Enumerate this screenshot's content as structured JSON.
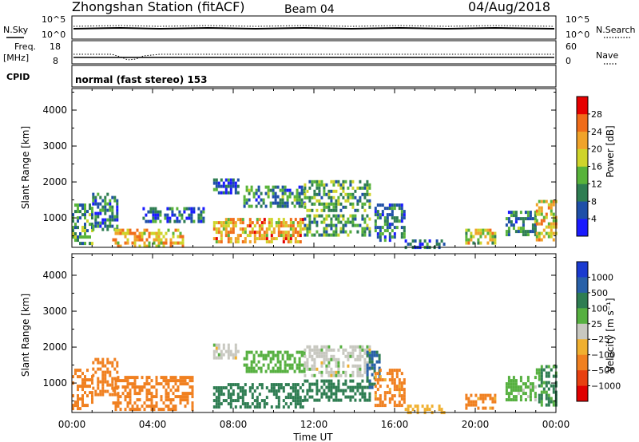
{
  "header": {
    "station_title": "Zhongshan Station (fitACF)",
    "beam_label": "Beam 04",
    "date": "04/Aug/2018"
  },
  "noise_panel": {
    "left_label": "N.Sky",
    "right_label": "N.Search",
    "left_ticks": [
      "10^5",
      "10^0"
    ],
    "right_ticks": [
      "10^5",
      "10^0"
    ]
  },
  "freq_panel": {
    "left_label_line1": "Freq.",
    "left_label_line2": "[MHz]",
    "right_label": "Nave",
    "left_ticks": [
      "18",
      "8"
    ],
    "right_ticks": [
      "60",
      "0"
    ]
  },
  "cpid_panel": {
    "label": "CPID",
    "mode_text": "normal (fast stereo) 153"
  },
  "colors": {
    "power_scale": [
      "#1a1aff",
      "#1e4fa8",
      "#2e7d52",
      "#58b33a",
      "#cfd42a",
      "#f0a32a",
      "#f06c1a",
      "#e60000"
    ],
    "velocity_scale": [
      "#1a3ad0",
      "#2860a8",
      "#2e7d52",
      "#56b040",
      "#c8c8c0",
      "#f0b030",
      "#f08020",
      "#e84010",
      "#e00000"
    ]
  },
  "chart_data": [
    {
      "type": "heatmap",
      "title": "Power",
      "xlabel": "",
      "ylabel": "Slant Range [km]",
      "x_unit": "UT hours",
      "xlim": [
        0,
        24
      ],
      "ylim": [
        180,
        4600
      ],
      "x_tick_values": [
        0,
        4,
        8,
        12,
        16,
        20,
        24
      ],
      "y_tick_values": [
        1000,
        2000,
        3000,
        4000
      ],
      "y_tick_labels": [
        "1000",
        "2000",
        "3000",
        "4000"
      ],
      "colorbar": {
        "label": "Power [dB]",
        "tick_labels": [
          "4",
          "8",
          "12",
          "16",
          "20",
          "24",
          "28"
        ]
      },
      "regions": [
        {
          "t_start": 0.0,
          "t_end": 1.0,
          "r_min": 300,
          "r_max": 1400,
          "value": 11
        },
        {
          "t_start": 1.0,
          "t_end": 2.3,
          "r_min": 700,
          "r_max": 1700,
          "value": 9
        },
        {
          "t_start": 2.0,
          "t_end": 5.5,
          "r_min": 250,
          "r_max": 700,
          "value": 21
        },
        {
          "t_start": 3.5,
          "t_end": 6.5,
          "r_min": 900,
          "r_max": 1300,
          "value": 8
        },
        {
          "t_start": 7.0,
          "t_end": 8.3,
          "r_min": 1700,
          "r_max": 2100,
          "value": 6
        },
        {
          "t_start": 7.0,
          "t_end": 11.5,
          "r_min": 350,
          "r_max": 1000,
          "value": 22
        },
        {
          "t_start": 8.5,
          "t_end": 11.5,
          "r_min": 1300,
          "r_max": 1900,
          "value": 10
        },
        {
          "t_start": 11.5,
          "t_end": 14.8,
          "r_min": 1250,
          "r_max": 2050,
          "value": 13
        },
        {
          "t_start": 11.5,
          "t_end": 14.8,
          "r_min": 500,
          "r_max": 1100,
          "value": 12
        },
        {
          "t_start": 15.0,
          "t_end": 16.5,
          "r_min": 400,
          "r_max": 1400,
          "value": 9
        },
        {
          "t_start": 16.5,
          "t_end": 18.5,
          "r_min": 200,
          "r_max": 400,
          "value": 7
        },
        {
          "t_start": 19.5,
          "t_end": 21.0,
          "r_min": 300,
          "r_max": 700,
          "value": 18
        },
        {
          "t_start": 21.5,
          "t_end": 23.0,
          "r_min": 500,
          "r_max": 1200,
          "value": 10
        },
        {
          "t_start": 23.0,
          "t_end": 24.0,
          "r_min": 400,
          "r_max": 1500,
          "value": 19
        }
      ]
    },
    {
      "type": "heatmap",
      "title": "Velocity",
      "xlabel": "Time UT",
      "ylabel": "Slant Range [km]",
      "x_unit": "UT hours",
      "xlim": [
        0,
        24
      ],
      "ylim": [
        180,
        4600
      ],
      "x_tick_values": [
        0,
        4,
        8,
        12,
        16,
        20,
        24
      ],
      "x_tick_labels": [
        "00:00",
        "04:00",
        "08:00",
        "12:00",
        "16:00",
        "20:00",
        "00:00"
      ],
      "y_tick_values": [
        1000,
        2000,
        3000,
        4000
      ],
      "y_tick_labels": [
        "1000",
        "2000",
        "3000",
        "4000"
      ],
      "colorbar": {
        "label": "Velocity [m s⁻¹]",
        "tick_labels": [
          "1000",
          "500",
          "100",
          "25",
          "−25",
          "−100",
          "−500",
          "−1000"
        ]
      },
      "regions": [
        {
          "t_start": 0.0,
          "t_end": 1.0,
          "r_min": 300,
          "r_max": 1400,
          "value": -300
        },
        {
          "t_start": 1.0,
          "t_end": 2.3,
          "r_min": 700,
          "r_max": 1700,
          "value": -200
        },
        {
          "t_start": 2.0,
          "t_end": 6.0,
          "r_min": 250,
          "r_max": 1200,
          "value": -300
        },
        {
          "t_start": 7.0,
          "t_end": 8.3,
          "r_min": 1700,
          "r_max": 2100,
          "value": 0
        },
        {
          "t_start": 7.0,
          "t_end": 11.5,
          "r_min": 350,
          "r_max": 1000,
          "value": 250
        },
        {
          "t_start": 8.5,
          "t_end": 11.5,
          "r_min": 1300,
          "r_max": 1900,
          "value": 60
        },
        {
          "t_start": 11.5,
          "t_end": 14.8,
          "r_min": 1250,
          "r_max": 2050,
          "value": 0
        },
        {
          "t_start": 11.5,
          "t_end": 14.8,
          "r_min": 500,
          "r_max": 1100,
          "value": 200
        },
        {
          "t_start": 14.6,
          "t_end": 15.2,
          "r_min": 900,
          "r_max": 1900,
          "value": 600
        },
        {
          "t_start": 15.0,
          "t_end": 16.5,
          "r_min": 400,
          "r_max": 1400,
          "value": -150
        },
        {
          "t_start": 16.5,
          "t_end": 18.5,
          "r_min": 200,
          "r_max": 400,
          "value": -60
        },
        {
          "t_start": 19.5,
          "t_end": 21.0,
          "r_min": 300,
          "r_max": 700,
          "value": -150
        },
        {
          "t_start": 21.5,
          "t_end": 23.0,
          "r_min": 500,
          "r_max": 1200,
          "value": 50
        },
        {
          "t_start": 23.0,
          "t_end": 24.0,
          "r_min": 400,
          "r_max": 1500,
          "value": 120
        }
      ]
    }
  ]
}
